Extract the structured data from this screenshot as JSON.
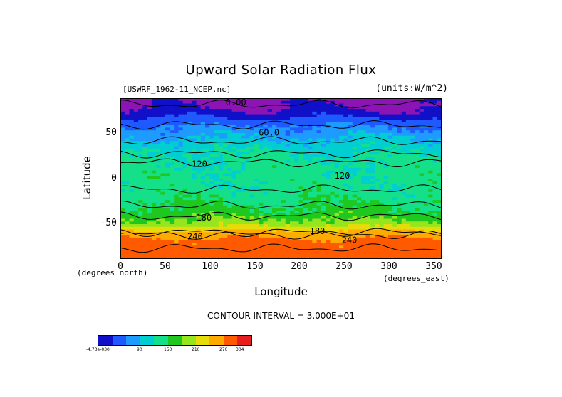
{
  "chart_data": {
    "type": "heatmap",
    "title": "Upward Solar Radiation Flux",
    "file_label": "[USWRF_1962-11_NCEP.nc]",
    "units_label": "(units:W/m^2)",
    "xlabel": "Longitude",
    "ylabel": "Latitude",
    "x_unit_label": "(degrees_east)",
    "y_unit_label": "(degrees_north)",
    "xlim": [
      0,
      360
    ],
    "ylim": [
      -90,
      90
    ],
    "x_ticks": [
      "0",
      "50",
      "100",
      "150",
      "200",
      "250",
      "300",
      "350"
    ],
    "y_ticks": [
      "50",
      "0",
      "-50"
    ],
    "contour_interval_label": "CONTOUR INTERVAL = 3.000E+01",
    "contour_labels": [
      "0.00",
      "60.0",
      "120",
      "120",
      "180",
      "180",
      "240",
      "240"
    ],
    "colorbar_labels": [
      "-4.73e-030",
      "90",
      "150",
      "210",
      "270",
      "304"
    ],
    "colorbar_colors": [
      "#1010c8",
      "#1e5aff",
      "#1e9bff",
      "#00ced1",
      "#14e08a",
      "#1ec81e",
      "#96e61e",
      "#e6dc0a",
      "#ffaa00",
      "#ff5a00",
      "#e61e1e"
    ],
    "band_profile": {
      "latitudes": [
        90,
        80,
        70,
        60,
        50,
        40,
        30,
        20,
        10,
        0,
        -10,
        -20,
        -30,
        -40,
        -50,
        -60,
        -70,
        -80,
        -90
      ],
      "zonal_mean_flux": [
        0,
        5,
        25,
        55,
        80,
        100,
        118,
        125,
        130,
        132,
        130,
        140,
        150,
        165,
        190,
        250,
        280,
        285,
        285
      ]
    }
  }
}
